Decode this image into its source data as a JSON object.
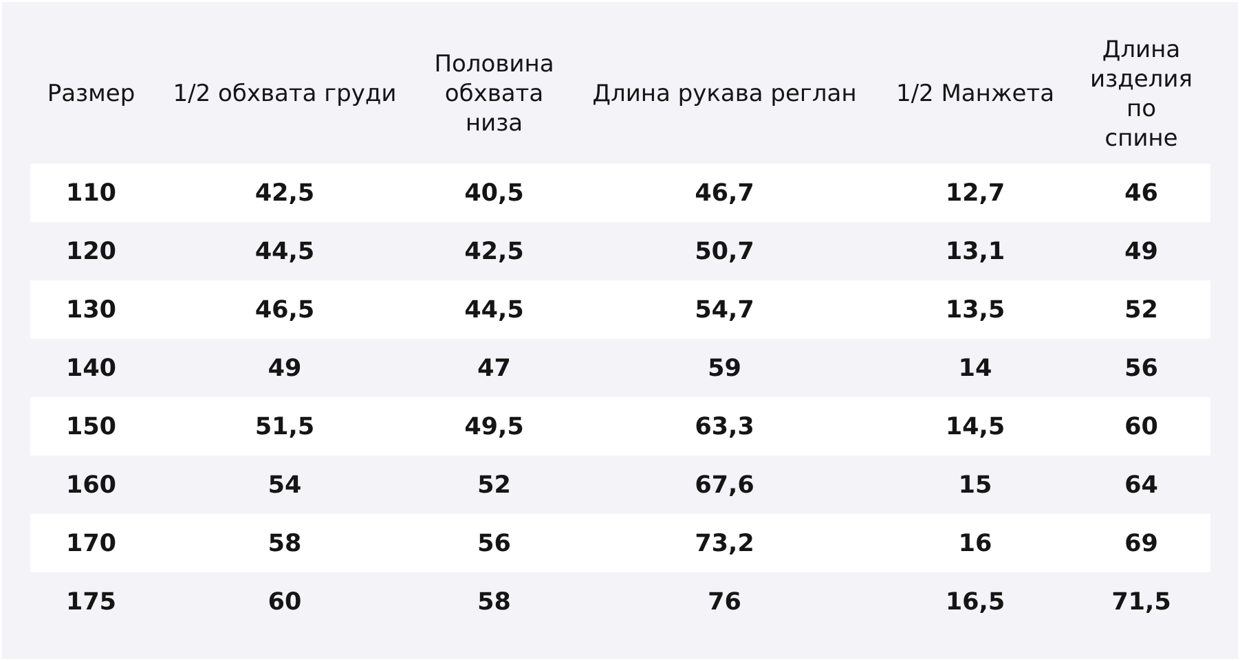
{
  "table": {
    "header": [
      "Размер",
      "1/2 обхвата груди",
      "Половина обхвата низа",
      "Длина рукава реглан",
      "1/2 Манжета",
      "Длина изделия по спине"
    ],
    "rows": [
      [
        "110",
        "42,5",
        "40,5",
        "46,7",
        "12,7",
        "46"
      ],
      [
        "120",
        "44,5",
        "42,5",
        "50,7",
        "13,1",
        "49"
      ],
      [
        "130",
        "46,5",
        "44,5",
        "54,7",
        "13,5",
        "52"
      ],
      [
        "140",
        "49",
        "47",
        "59",
        "14",
        "56"
      ],
      [
        "150",
        "51,5",
        "49,5",
        "63,3",
        "14,5",
        "60"
      ],
      [
        "160",
        "54",
        "52",
        "67,6",
        "15",
        "64"
      ],
      [
        "170",
        "58",
        "56",
        "73,2",
        "16",
        "69"
      ],
      [
        "175",
        "60",
        "58",
        "76",
        "16,5",
        "71,5"
      ]
    ]
  }
}
